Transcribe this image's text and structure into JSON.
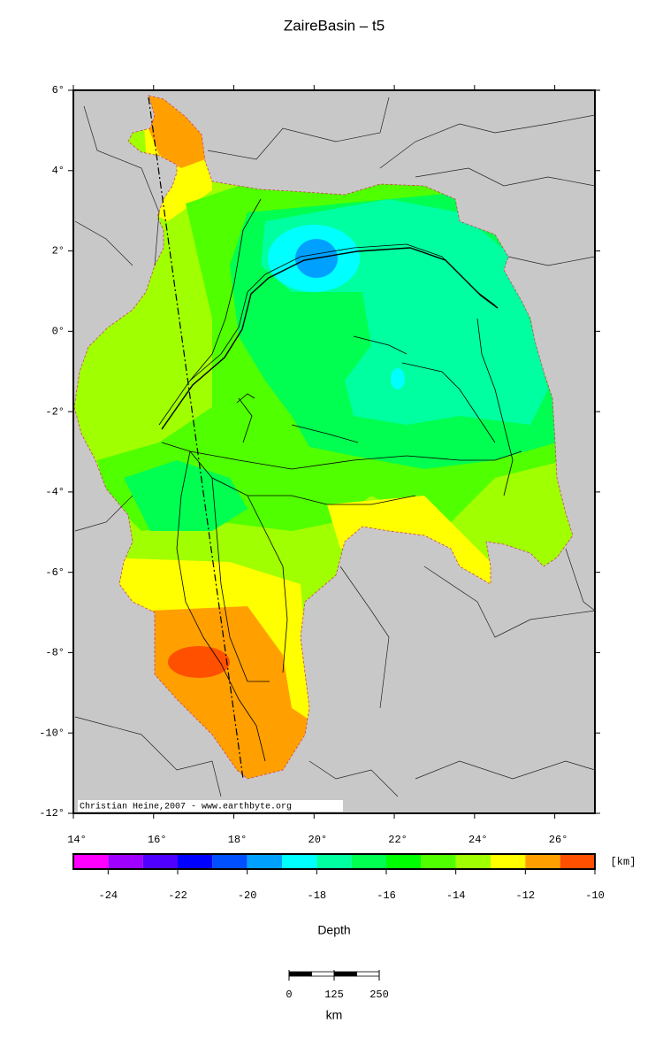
{
  "title": "ZaireBasin – t5",
  "map": {
    "xlim": [
      14,
      27
    ],
    "ylim": [
      -12,
      6
    ],
    "xticks": [
      {
        "value": 14,
        "label": "14°"
      },
      {
        "value": 16,
        "label": "16°"
      },
      {
        "value": 18,
        "label": "18°"
      },
      {
        "value": 20,
        "label": "20°"
      },
      {
        "value": 22,
        "label": "22°"
      },
      {
        "value": 24,
        "label": "24°"
      },
      {
        "value": 26,
        "label": "26°"
      }
    ],
    "yticks": [
      {
        "value": 6,
        "label": "6°"
      },
      {
        "value": 4,
        "label": "4°"
      },
      {
        "value": 2,
        "label": "2°"
      },
      {
        "value": 0,
        "label": "0°"
      },
      {
        "value": -2,
        "label": "-2°"
      },
      {
        "value": -4,
        "label": "-4°"
      },
      {
        "value": -6,
        "label": "-6°"
      },
      {
        "value": -8,
        "label": "-8°"
      },
      {
        "value": -10,
        "label": "-10°"
      },
      {
        "value": -12,
        "label": "-12°"
      }
    ],
    "credit": "Christian Heine,2007 - www.earthbyte.org"
  },
  "colorbar": {
    "lim": [
      -25,
      -10
    ],
    "ticks": [
      -24,
      -22,
      -20,
      -18,
      -16,
      -14,
      -12,
      -10
    ],
    "colors": [
      "#ff00ff",
      "#a000ff",
      "#5000ff",
      "#0000ff",
      "#0050ff",
      "#00a0ff",
      "#00ffff",
      "#00ffa0",
      "#00ff50",
      "#00ff00",
      "#50ff00",
      "#a0ff00",
      "#ffff00",
      "#ffa000",
      "#ff5000"
    ],
    "unit": "[km]",
    "label": "Depth"
  },
  "scalebar": {
    "lim": [
      0,
      250
    ],
    "ticks": [
      0,
      125,
      250
    ],
    "unit": "km"
  }
}
